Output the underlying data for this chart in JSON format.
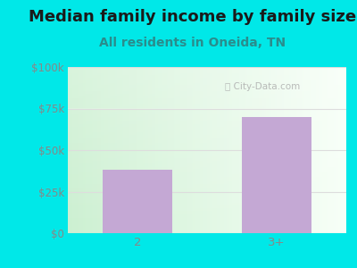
{
  "title": "Median family income by family size",
  "subtitle": "All residents in Oneida, TN",
  "categories": [
    "2",
    "3+"
  ],
  "values": [
    38000,
    70000
  ],
  "bar_color": "#c4a8d4",
  "outer_bg": "#00e8e8",
  "yticks": [
    0,
    25000,
    50000,
    75000,
    100000
  ],
  "ytick_labels": [
    "$0",
    "$25k",
    "$50k",
    "$75k",
    "$100k"
  ],
  "ylim": [
    0,
    100000
  ],
  "title_color": "#1a1a1a",
  "subtitle_color": "#2a8c8c",
  "tick_color": "#888888",
  "watermark": "City-Data.com",
  "title_fontsize": 13,
  "subtitle_fontsize": 10,
  "grid_color": "#dddddd",
  "plot_bg_green": [
    0.8,
    0.94,
    0.82
  ],
  "plot_bg_white": [
    0.97,
    1.0,
    0.97
  ]
}
